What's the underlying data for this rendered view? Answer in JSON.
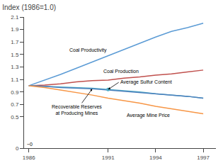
{
  "chart_data": {
    "type": "line",
    "title": "Index (1986=1.0)",
    "x": [
      1986,
      1987,
      1988,
      1989,
      1990,
      1991,
      1992,
      1993,
      1994,
      1995,
      1996,
      1997
    ],
    "series": [
      {
        "name": "Coal Productivity",
        "color": "#5B9BD5",
        "values": [
          1.0,
          1.09,
          1.18,
          1.28,
          1.38,
          1.48,
          1.58,
          1.68,
          1.78,
          1.87,
          1.93,
          2.0
        ]
      },
      {
        "name": "Coal Production",
        "color": "#C0504D",
        "values": [
          1.0,
          1.01,
          1.03,
          1.06,
          1.08,
          1.09,
          1.12,
          1.14,
          1.17,
          1.19,
          1.22,
          1.25
        ]
      },
      {
        "name": "Average Sulfur Content",
        "color": "#4BACC6",
        "values": [
          1.0,
          0.99,
          0.98,
          0.97,
          0.96,
          0.94,
          0.92,
          0.9,
          0.87,
          0.85,
          0.83,
          0.8
        ]
      },
      {
        "name": "Recoverable Reserves\nat Producing Mines",
        "color": "#4F81BD",
        "values": [
          1.0,
          0.99,
          0.97,
          0.96,
          0.95,
          0.93,
          0.91,
          0.89,
          0.87,
          0.85,
          0.83,
          0.8
        ]
      },
      {
        "name": "Average Mine Price",
        "color": "#F79646",
        "values": [
          1.0,
          0.97,
          0.93,
          0.89,
          0.85,
          0.8,
          0.76,
          0.72,
          0.67,
          0.63,
          0.59,
          0.55
        ]
      },
      {
        "type": "scatter",
        "marker": "circle",
        "color": "#4BACC6",
        "x": [
          1991
        ],
        "values": [
          0.94
        ]
      }
    ],
    "annotations": [
      "~0"
    ],
    "xlim": [
      1985.7,
      1997.8
    ],
    "xticks": [
      1986,
      1991,
      1994,
      1997
    ],
    "ylim": [
      0,
      2.1
    ],
    "yticks": [
      0,
      0.5,
      0.7,
      0.9,
      1.1,
      1.3,
      1.5,
      1.7,
      1.9,
      2.1
    ],
    "grid": false
  }
}
